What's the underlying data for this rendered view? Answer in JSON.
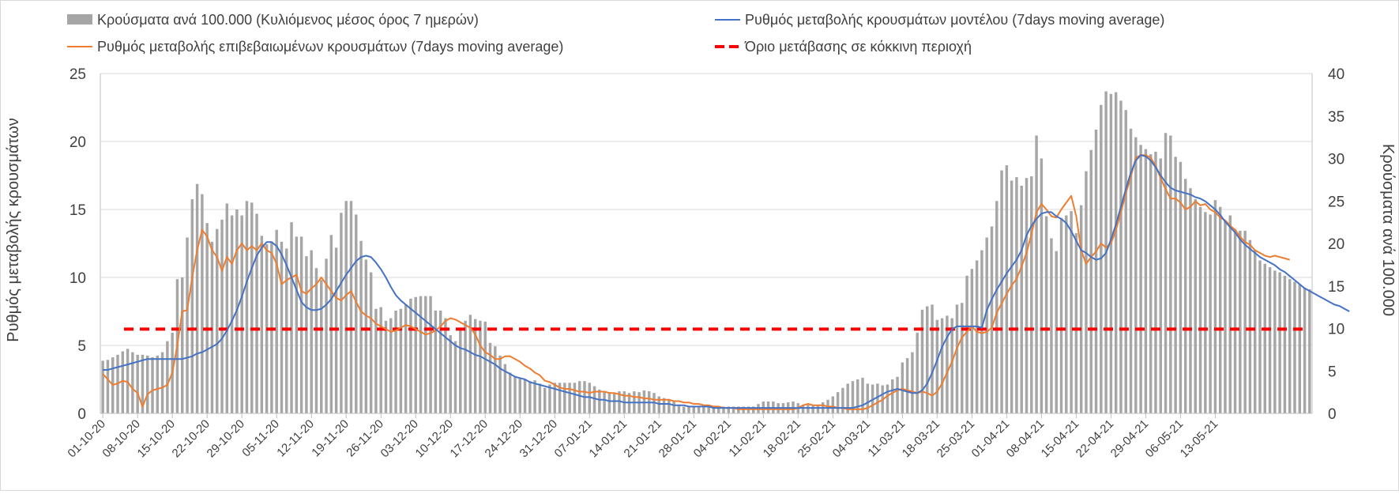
{
  "chart_data": {
    "type": "bar+line",
    "legend": {
      "placement": "top",
      "entries": [
        {
          "key": "bars",
          "label": "Κρούσματα ανά 100.000 (Κυλιόμενος μέσος όρος 7 ημερών)",
          "style": "bar",
          "color": "#a6a6a6"
        },
        {
          "key": "model",
          "label": "Ρυθμός μεταβολής κρουσμάτων μοντέλου (7days moving average)",
          "style": "line",
          "color": "#4472c4"
        },
        {
          "key": "confirmed",
          "label": "Ρυθμός μεταβολής επιβεβαιωμένων κρουσμάτων (7days moving average)",
          "style": "line",
          "color": "#ed7d31"
        },
        {
          "key": "threshold",
          "label": "Όριο μετάβασης σε κόκκινη περιοχή",
          "style": "dashed",
          "color": "#ff0000"
        }
      ]
    },
    "y_left": {
      "title": "Ρυθμός μεταβολής κρουσμάτων",
      "range": [
        0,
        25
      ],
      "ticks": [
        0,
        5,
        10,
        15,
        20,
        25
      ]
    },
    "y_right": {
      "title": "Κρούσματα ανά 100.000",
      "range": [
        0,
        40
      ],
      "ticks": [
        0,
        5,
        10,
        15,
        20,
        25,
        30,
        35,
        40
      ]
    },
    "grid": true,
    "x_tick_labels": [
      "01-10-20",
      "08-10-20",
      "15-10-20",
      "22-10-20",
      "29-10-20",
      "05-11-20",
      "12-11-20",
      "19-11-20",
      "26-11-20",
      "03-12-20",
      "10-12-20",
      "17-12-20",
      "24-12-20",
      "31-12-20",
      "07-01-21",
      "14-01-21",
      "21-01-21",
      "28-01-21",
      "04-02-21",
      "11-02-21",
      "18-02-21",
      "25-02-21",
      "04-03-21",
      "11-03-21",
      "18-03-21",
      "25-03-21",
      "01-04-21",
      "08-04-21",
      "15-04-21",
      "22-04-21",
      "29-04-21",
      "06-05-21",
      "13-05-21"
    ],
    "bars_per_100k": [
      6.2,
      6.3,
      6.6,
      6.9,
      7.3,
      7.6,
      7.2,
      6.9,
      6.9,
      6.8,
      6.6,
      6.8,
      7.2,
      8.5,
      9.5,
      15.8,
      16,
      20.7,
      25.2,
      27,
      25.8,
      22.4,
      20.2,
      21.7,
      22.8,
      24.7,
      23.3,
      24,
      23.3,
      25,
      24.8,
      23.5,
      20.9,
      19.9,
      20.2,
      21.6,
      20.2,
      19.4,
      22.5,
      20.8,
      20.8,
      18.5,
      19.2,
      17.1,
      15.7,
      18.2,
      21,
      19.5,
      23.6,
      25,
      25,
      23.4,
      20.3,
      18.1,
      16.6,
      12.3,
      12.5,
      10.9,
      11.2,
      12.1,
      12.3,
      12.8,
      13.5,
      13.7,
      13.8,
      13.8,
      13.8,
      12.1,
      12.1,
      11.2,
      9.2,
      8.5,
      9.8,
      10.9,
      11.6,
      11.1,
      10.9,
      10.8,
      8.3,
      7.9,
      6.8,
      5.8,
      4.8,
      4.3,
      4.1,
      4,
      3.8,
      3.9,
      3.5,
      3,
      3.4,
      3.6,
      3.6,
      3.6,
      3.6,
      3.6,
      3.8,
      3.8,
      3.6,
      3.2,
      2.8,
      2.6,
      2.5,
      2.4,
      2.6,
      2.6,
      2.4,
      2.6,
      2.5,
      2.7,
      2.6,
      2.4,
      2,
      1.8,
      1.7,
      1.5,
      0.9,
      0.8,
      0.8,
      0.8,
      0.8,
      0.8,
      0.8,
      0.8,
      0.8,
      0.8,
      0.8,
      0.8,
      0.8,
      0.8,
      0.8,
      0.8,
      1.1,
      1.4,
      1.4,
      1.4,
      1.2,
      1.2,
      1.3,
      1.4,
      1.2,
      1,
      1,
      0.9,
      1,
      1.3,
      1.6,
      2,
      2.5,
      3,
      3.5,
      3.8,
      4,
      4.2,
      3.5,
      3.4,
      3.5,
      3.3,
      3.4,
      4,
      4.3,
      6,
      6.5,
      7.2,
      9.5,
      12.2,
      12.6,
      12.8,
      11,
      11.2,
      11.5,
      11.2,
      12.8,
      13,
      16.2,
      17,
      18,
      19.2,
      20.7,
      22,
      25,
      28.6,
      29.2,
      27.4,
      27.8,
      26.8,
      27.7,
      27.9,
      32.7,
      30,
      23.2,
      20.6,
      19.1,
      23,
      23.3,
      23.8,
      21.2,
      24.5,
      28.5,
      31,
      33.4,
      36.3,
      37.9,
      37.6,
      37.8,
      36.8,
      35.7,
      33.5,
      32.5,
      31.6,
      31.1,
      30.5,
      30.8,
      30,
      33,
      32.7,
      30.2,
      29.6,
      27.6,
      26.5,
      25.2,
      24.3,
      23.7,
      23.4,
      25.1,
      24.3,
      22.7,
      23.3,
      21.7,
      21.5,
      21.5,
      20.4,
      19.2,
      18,
      17.6,
      17.2,
      16.8,
      16.6,
      16.2,
      15.8,
      15.5,
      15.2,
      14.8,
      14.6
    ],
    "model_rate": [
      3.2,
      3.2,
      3.3,
      3.4,
      3.5,
      3.6,
      3.7,
      3.8,
      3.9,
      4.0,
      4.0,
      4.0,
      4.0,
      4.0,
      4.0,
      4.0,
      4.0,
      4.1,
      4.2,
      4.4,
      4.5,
      4.7,
      4.9,
      5.1,
      5.5,
      6.1,
      6.8,
      7.6,
      8.6,
      9.7,
      10.7,
      11.6,
      12.2,
      12.6,
      12.6,
      12.3,
      11.7,
      10.9,
      10.0,
      9.1,
      8.2,
      7.8,
      7.6,
      7.6,
      7.7,
      8.0,
      8.4,
      9.0,
      9.6,
      10.2,
      10.7,
      11.2,
      11.5,
      11.6,
      11.5,
      11.1,
      10.6,
      10.0,
      9.3,
      8.7,
      8.3,
      8.0,
      7.7,
      7.4,
      7.1,
      6.8,
      6.5,
      6.2,
      5.9,
      5.6,
      5.3,
      5.0,
      4.8,
      4.7,
      4.5,
      4.3,
      4.2,
      4.0,
      3.8,
      3.6,
      3.3,
      3.1,
      2.9,
      2.7,
      2.6,
      2.5,
      2.3,
      2.2,
      2.1,
      2.0,
      1.9,
      1.8,
      1.7,
      1.6,
      1.5,
      1.4,
      1.3,
      1.2,
      1.2,
      1.1,
      1.0,
      1.0,
      0.9,
      0.9,
      0.9,
      0.8,
      0.8,
      0.8,
      0.8,
      0.8,
      0.8,
      0.8,
      0.7,
      0.7,
      0.7,
      0.6,
      0.6,
      0.6,
      0.5,
      0.5,
      0.5,
      0.5,
      0.5,
      0.4,
      0.4,
      0.4,
      0.4,
      0.4,
      0.4,
      0.4,
      0.4,
      0.4,
      0.4,
      0.4,
      0.4,
      0.4,
      0.4,
      0.4,
      0.4,
      0.4,
      0.4,
      0.4,
      0.4,
      0.4,
      0.4,
      0.4,
      0.4,
      0.4,
      0.4,
      0.4,
      0.4,
      0.4,
      0.5,
      0.6,
      0.8,
      1.0,
      1.2,
      1.4,
      1.6,
      1.7,
      1.8,
      1.7,
      1.6,
      1.5,
      1.5,
      1.7,
      2.2,
      3.0,
      3.9,
      4.9,
      5.6,
      6.2,
      6.4,
      6.4,
      6.4,
      6.4,
      6.4,
      6.3,
      7.6,
      8.4,
      9.1,
      9.7,
      10.3,
      10.8,
      11.3,
      12.0,
      13.1,
      13.8,
      14.3,
      14.7,
      14.8,
      14.8,
      14.5,
      14.3,
      14.0,
      13.4,
      12.7,
      12.0,
      11.8,
      11.5,
      11.3,
      11.4,
      11.8,
      12.8,
      13.9,
      15.2,
      16.5,
      17.7,
      18.6,
      19.0,
      18.9,
      18.6,
      18.1,
      17.5,
      17.0,
      16.6,
      16.4,
      16.3,
      16.2,
      16.1,
      15.9,
      15.8,
      15.6,
      15.3,
      15.0,
      14.6,
      14.1,
      13.7,
      13.3,
      12.8,
      12.4,
      12.1,
      11.8,
      11.5,
      11.3,
      11.1,
      10.9,
      10.6,
      10.4,
      10.1,
      9.8,
      9.5,
      9.2,
      9.0,
      8.8,
      8.6,
      8.4,
      8.2,
      8.0,
      7.9,
      7.7,
      7.5
    ],
    "confirmed_rate": [
      2.9,
      2.5,
      2.1,
      2.2,
      2.4,
      2.3,
      1.8,
      1.5,
      0.5,
      1.4,
      1.7,
      1.8,
      1.9,
      2.1,
      3.0,
      5.0,
      7.5,
      7.6,
      10.0,
      12.0,
      13.5,
      13.0,
      12.0,
      11.5,
      10.5,
      11.5,
      11.0,
      12.0,
      12.5,
      12.0,
      12.3,
      12.0,
      12.5,
      12.0,
      11.8,
      11.0,
      9.5,
      9.8,
      10.0,
      10.2,
      9.0,
      8.8,
      9.2,
      9.5,
      10.0,
      9.5,
      9.0,
      8.5,
      8.3,
      8.7,
      9.0,
      8.2,
      7.5,
      7.2,
      7.0,
      6.6,
      6.4,
      6.2,
      6.0,
      6.1,
      6.3,
      6.5,
      6.4,
      6.2,
      6.0,
      5.8,
      5.9,
      6.1,
      6.4,
      6.8,
      7.0,
      6.9,
      6.7,
      6.5,
      6.3,
      5.8,
      5.0,
      4.5,
      4.3,
      4.0,
      4.0,
      4.2,
      4.2,
      4.0,
      3.8,
      3.5,
      3.3,
      3.0,
      2.8,
      2.4,
      2.3,
      2.1,
      1.9,
      1.8,
      1.8,
      1.7,
      1.6,
      1.6,
      1.5,
      1.6,
      1.6,
      1.6,
      1.5,
      1.5,
      1.4,
      1.3,
      1.3,
      1.2,
      1.2,
      1.1,
      1.1,
      1.0,
      1.0,
      1.0,
      1.0,
      0.9,
      0.9,
      0.8,
      0.8,
      0.7,
      0.7,
      0.6,
      0.6,
      0.5,
      0.5,
      0.4,
      0.4,
      0.4,
      0.3,
      0.3,
      0.3,
      0.3,
      0.3,
      0.3,
      0.3,
      0.3,
      0.3,
      0.3,
      0.3,
      0.3,
      0.4,
      0.6,
      0.7,
      0.6,
      0.6,
      0.6,
      0.5,
      0.5,
      0.4,
      0.4,
      0.3,
      0.3,
      0.3,
      0.3,
      0.4,
      0.6,
      0.8,
      1.0,
      1.3,
      1.5,
      1.7,
      1.8,
      1.7,
      1.6,
      1.5,
      1.6,
      1.5,
      1.3,
      1.6,
      2.2,
      3.0,
      3.8,
      4.8,
      5.6,
      6.0,
      6.4,
      6.0,
      5.9,
      6.0,
      6.3,
      7.4,
      8.1,
      8.8,
      9.4,
      9.9,
      10.8,
      11.8,
      13.2,
      14.8,
      15.4,
      15.0,
      14.5,
      14.4,
      15.0,
      15.5,
      16.0,
      14.5,
      12.0,
      11.0,
      11.5,
      11.9,
      12.5,
      12.2,
      12.5,
      13.5,
      14.8,
      16.2,
      17.4,
      18.8,
      19.0,
      19.0,
      18.8,
      18.2,
      17.3,
      16.5,
      15.8,
      15.8,
      15.5,
      15.0,
      15.2,
      15.6,
      15.3,
      15.4,
      15.0,
      14.8,
      14.4,
      14.2,
      13.8,
      13.5,
      13.0,
      12.6,
      12.4,
      12.0,
      11.8,
      11.6,
      11.5,
      11.6,
      11.5,
      11.4,
      11.3
    ],
    "threshold_rate": 6.2
  }
}
